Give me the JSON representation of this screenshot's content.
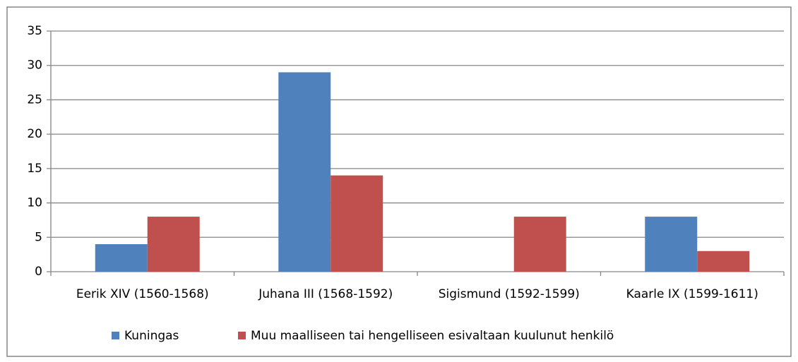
{
  "chart_data": {
    "type": "bar",
    "categories": [
      "Eerik XIV (1560-1568)",
      "Juhana III (1568-1592)",
      "Sigismund (1592-1599)",
      "Kaarle IX (1599-1611)"
    ],
    "series": [
      {
        "name": "Kuningas",
        "color": "#4f81bd",
        "values": [
          4,
          29,
          0,
          8
        ]
      },
      {
        "name": "Muu maalliseen tai hengelliseen esivaltaan kuulunut henkilö",
        "color": "#c0504d",
        "values": [
          8,
          14,
          8,
          3
        ]
      }
    ],
    "ylim": [
      0,
      35
    ],
    "yticks": [
      0,
      5,
      10,
      15,
      20,
      25,
      30,
      35
    ],
    "grid": true,
    "legend": "bottom"
  }
}
